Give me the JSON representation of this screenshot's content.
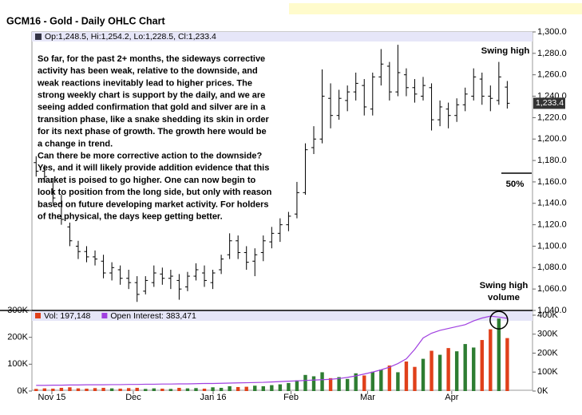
{
  "chart_data": [
    {
      "type": "ohlc",
      "title": "GCM16 - Gold - Daily OHLC Chart",
      "header": "Op:1,248.5, Hi:1,254.2, Lo:1,228.5, Cl:1,233.4",
      "color": "#000000",
      "open": [
        1178,
        1170,
        1160,
        1140,
        1118,
        1100,
        1095,
        1090,
        1086,
        1075,
        1078,
        1070,
        1066,
        1058,
        1066,
        1074,
        1070,
        1068,
        1062,
        1072,
        1075,
        1066,
        1078,
        1092,
        1105,
        1094,
        1086,
        1094,
        1104,
        1112,
        1120,
        1130,
        1150,
        1192,
        1200,
        1238,
        1222,
        1236,
        1244,
        1250,
        1228,
        1258,
        1268,
        1244,
        1260,
        1248,
        1240,
        1248,
        1218,
        1228,
        1222,
        1232,
        1240,
        1256,
        1240,
        1236,
        1248.5
      ],
      "high": [
        1184,
        1176,
        1163,
        1148,
        1122,
        1105,
        1100,
        1096,
        1092,
        1085,
        1082,
        1078,
        1072,
        1072,
        1082,
        1080,
        1078,
        1074,
        1076,
        1084,
        1082,
        1078,
        1092,
        1112,
        1110,
        1100,
        1098,
        1110,
        1118,
        1126,
        1132,
        1160,
        1196,
        1212,
        1265,
        1252,
        1246,
        1250,
        1262,
        1256,
        1262,
        1284,
        1272,
        1288,
        1266,
        1256,
        1258,
        1252,
        1236,
        1234,
        1238,
        1248,
        1266,
        1262,
        1250,
        1272,
        1254.2
      ],
      "low": [
        1165,
        1160,
        1140,
        1120,
        1100,
        1088,
        1085,
        1082,
        1070,
        1068,
        1064,
        1060,
        1048,
        1055,
        1062,
        1064,
        1060,
        1050,
        1058,
        1068,
        1062,
        1060,
        1074,
        1088,
        1088,
        1078,
        1072,
        1086,
        1098,
        1104,
        1114,
        1126,
        1148,
        1186,
        1196,
        1210,
        1218,
        1226,
        1236,
        1222,
        1222,
        1250,
        1236,
        1240,
        1240,
        1234,
        1236,
        1208,
        1212,
        1210,
        1216,
        1226,
        1236,
        1232,
        1226,
        1232,
        1228.5
      ],
      "close": [
        1170,
        1165,
        1145,
        1125,
        1105,
        1095,
        1090,
        1088,
        1075,
        1080,
        1070,
        1066,
        1055,
        1068,
        1075,
        1070,
        1072,
        1060,
        1072,
        1078,
        1068,
        1075,
        1088,
        1105,
        1094,
        1085,
        1092,
        1105,
        1112,
        1120,
        1128,
        1150,
        1190,
        1200,
        1240,
        1222,
        1238,
        1244,
        1252,
        1230,
        1258,
        1270,
        1244,
        1262,
        1248,
        1242,
        1250,
        1218,
        1230,
        1222,
        1232,
        1242,
        1258,
        1240,
        1238,
        1258,
        1233.4
      ],
      "last_label": "1,233.4",
      "xlim": [
        -0.5,
        59
      ],
      "xticks": [
        {
          "value": 1.87,
          "label": "Nov 15"
        },
        {
          "value": 11.55,
          "label": "Dec"
        },
        {
          "value": 21.04,
          "label": "Jan 16"
        },
        {
          "value": 30.3,
          "label": "Feb"
        },
        {
          "value": 39.4,
          "label": "Mar"
        },
        {
          "value": 49.4,
          "label": "Apr"
        }
      ],
      "ylim": [
        1040,
        1300
      ],
      "yticks": [
        {
          "value": 1040,
          "label": "1,040.0"
        },
        {
          "value": 1060,
          "label": "1,060.0"
        },
        {
          "value": 1080,
          "label": "1,080.0"
        },
        {
          "value": 1100,
          "label": "1,100.0"
        },
        {
          "value": 1120,
          "label": "1,120.0"
        },
        {
          "value": 1140,
          "label": "1,140.0"
        },
        {
          "value": 1160,
          "label": "1,160.0"
        },
        {
          "value": 1180,
          "label": "1,180.0"
        },
        {
          "value": 1200,
          "label": "1,200.0"
        },
        {
          "value": 1220,
          "label": "1,220.0"
        },
        {
          "value": 1240,
          "label": "1,240.0"
        },
        {
          "value": 1260,
          "label": "1,260.0"
        },
        {
          "value": 1280,
          "label": "1,280.0"
        },
        {
          "value": 1300,
          "label": "1,300.0"
        }
      ],
      "commentary": [
        "So far, for the past 2+ months, the sideways corrective",
        "activity has been weak, relative to the downside, and",
        "weak reactions inevitably lead to higher prices.  The",
        "strong weekly chart is support by the daily, and we are",
        "seeing added confirmation that gold and silver are in a",
        "transition phase, like a snake shedding its skin in order",
        "for its next phase of growth.  The growth here would be",
        "a change in trend.",
        "Can there be more corrective action to the downside?",
        "Yes, and it will likely provide addition evidence that this",
        "market is poised to go higher.  One can now begin to",
        "look to position from the long side, but only with reason",
        "based on future developing market activity.  For holders",
        "of the physical, the days keep getting better."
      ],
      "swing_high": "Swing high",
      "retracement": "50%",
      "swing_high_volume": [
        "Swing high",
        "volume"
      ]
    },
    {
      "type": "volume",
      "up_color": "#2e7d32",
      "down_color": "#e0401a",
      "series": [
        {
          "name": "Vol: 197,148",
          "color": "#e0401a",
          "values": [
            8000,
            10000,
            9000,
            12000,
            14000,
            10000,
            9000,
            11000,
            12000,
            10000,
            9000,
            11000,
            12000,
            8000,
            10000,
            9000,
            8000,
            12000,
            10000,
            11000,
            9000,
            14000,
            12000,
            18000,
            15000,
            16000,
            20000,
            18000,
            22000,
            25000,
            30000,
            40000,
            60000,
            55000,
            70000,
            48000,
            52000,
            45000,
            66000,
            58000,
            72000,
            80000,
            95000,
            70000,
            110000,
            90000,
            120000,
            150000,
            135000,
            160000,
            148000,
            175000,
            162000,
            190000,
            230000,
            270000,
            197148
          ]
        },
        {
          "name": "Open Interest: 383,471",
          "color": "#a040e0",
          "axis": "y2",
          "values": [
            30000,
            30000,
            31000,
            31000,
            32000,
            32000,
            33000,
            33000,
            33000,
            34000,
            34000,
            35000,
            35000,
            36000,
            36000,
            37000,
            37000,
            38000,
            38000,
            39000,
            40000,
            40000,
            41000,
            42000,
            43000,
            44000,
            45000,
            46000,
            48000,
            50000,
            52000,
            54000,
            56000,
            58000,
            60000,
            62000,
            66000,
            72000,
            80000,
            90000,
            100000,
            112000,
            126000,
            145000,
            170000,
            220000,
            280000,
            305000,
            320000,
            330000,
            340000,
            350000,
            370000,
            385000,
            395000,
            390000,
            383471
          ]
        }
      ],
      "ylim": [
        0,
        300000
      ],
      "yticks": [
        {
          "value": 0,
          "label": "0K"
        },
        {
          "value": 100000,
          "label": "100K"
        },
        {
          "value": 200000,
          "label": "200K"
        },
        {
          "value": 300000,
          "label": "300K"
        }
      ],
      "y2lim": [
        0,
        425000
      ],
      "y2ticks": [
        {
          "value": 0,
          "label": "0K"
        },
        {
          "value": 100000,
          "label": "100K"
        },
        {
          "value": 200000,
          "label": "200K"
        },
        {
          "value": 300000,
          "label": "300K"
        },
        {
          "value": 400000,
          "label": "400K"
        }
      ]
    }
  ]
}
